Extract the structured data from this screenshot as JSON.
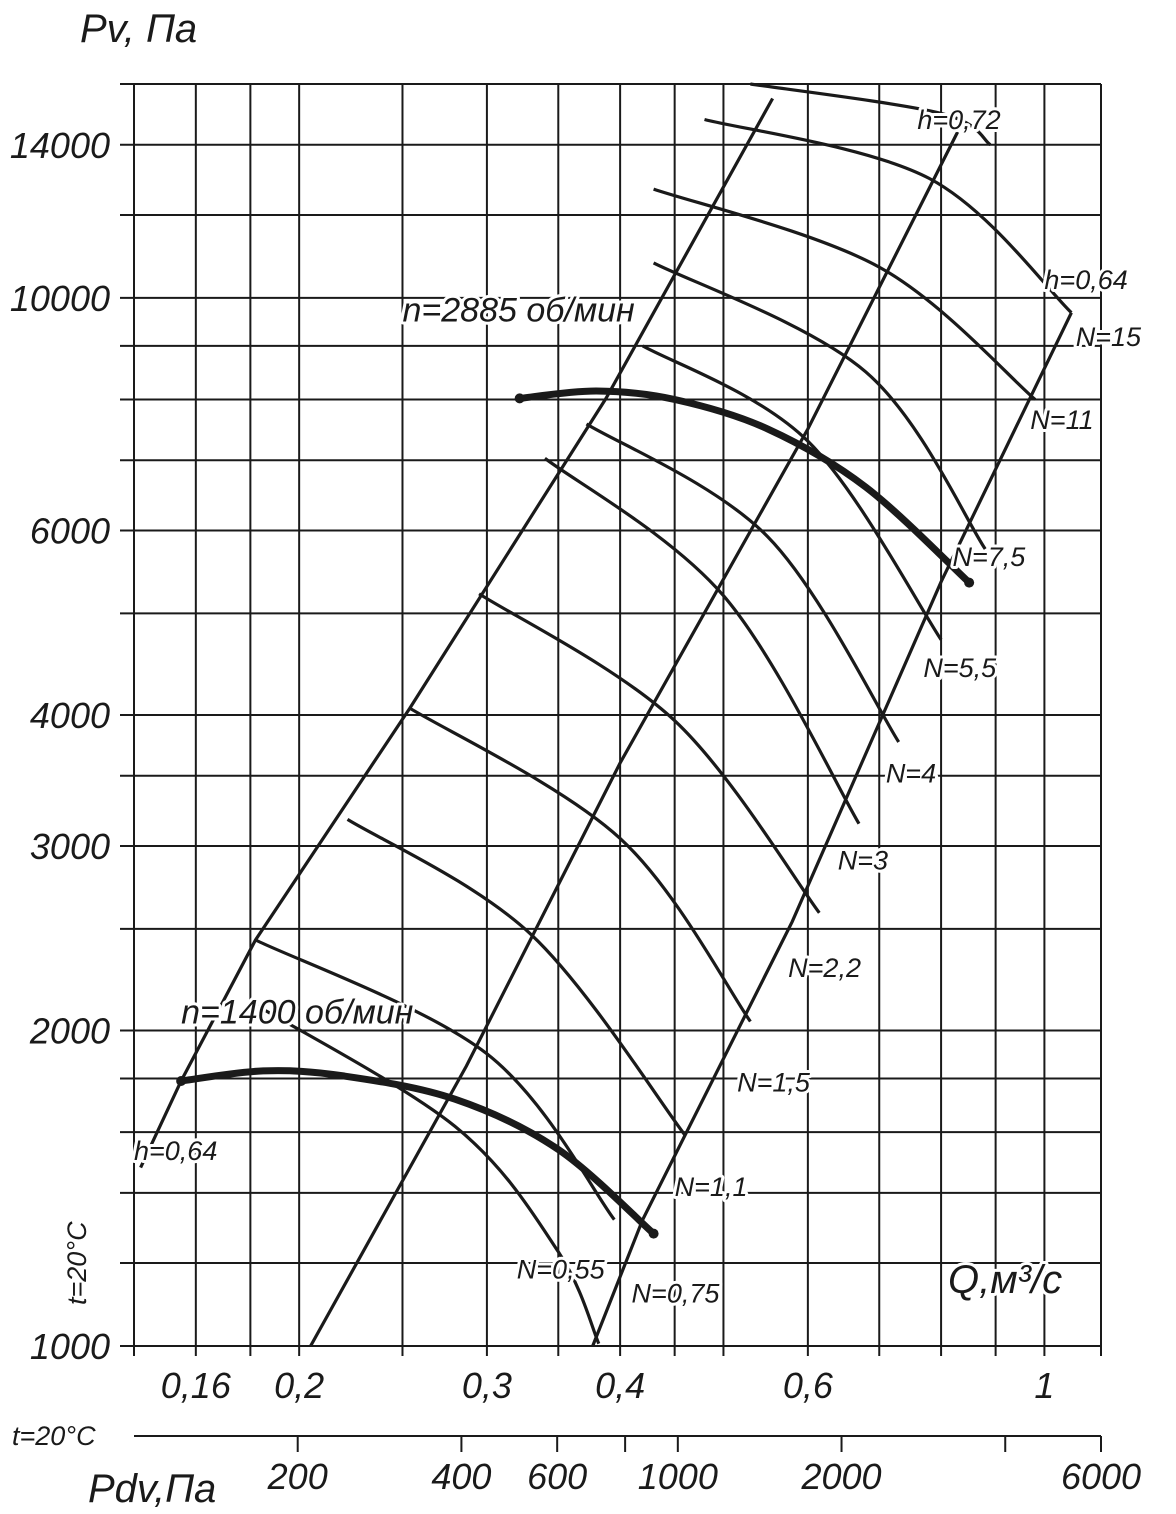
{
  "chart_data": {
    "type": "line",
    "ylabel": "Pv, Па",
    "xlabel": "Q,м³/с",
    "pdv_label": "Pdv,Па",
    "temp_label_y": "t=20°C",
    "temp_label_pdv": "t=20°C",
    "y_scale": "log",
    "x_scale": "log",
    "ylim": [
      1000,
      15000
    ],
    "xlim": [
      0.14,
      1.13
    ],
    "pdv_lim": [
      100,
      6000
    ],
    "grid": true,
    "y_ticks": [
      {
        "value": 1000,
        "label": "1000"
      },
      {
        "value": 2000,
        "label": "2000"
      },
      {
        "value": 3000,
        "label": "3000"
      },
      {
        "value": 4000,
        "label": "4000"
      },
      {
        "value": 6000,
        "label": "6000"
      },
      {
        "value": 10000,
        "label": "10000"
      },
      {
        "value": 14000,
        "label": "14000"
      }
    ],
    "y_grid": [
      1000,
      1200,
      1400,
      1600,
      1800,
      2000,
      2500,
      3000,
      3500,
      4000,
      5000,
      6000,
      7000,
      8000,
      9000,
      10000,
      12000,
      14000,
      16000
    ],
    "x_ticks": [
      {
        "value": 0.16,
        "label": "0,16"
      },
      {
        "value": 0.2,
        "label": "0,2"
      },
      {
        "value": 0.3,
        "label": "0,3"
      },
      {
        "value": 0.4,
        "label": "0,4"
      },
      {
        "value": 0.6,
        "label": "0,6"
      },
      {
        "value": 1.0,
        "label": "1"
      }
    ],
    "x_grid": [
      0.14,
      0.16,
      0.18,
      0.2,
      0.25,
      0.3,
      0.35,
      0.4,
      0.45,
      0.5,
      0.6,
      0.7,
      0.8,
      0.9,
      1.0,
      1.13
    ],
    "pdv_ticks": [
      {
        "value": 200,
        "label": "200"
      },
      {
        "value": 400,
        "label": "400"
      },
      {
        "value": 600,
        "label": "600"
      },
      {
        "value": 1000,
        "label": "1000"
      },
      {
        "value": 2000,
        "label": "2000"
      },
      {
        "value": 6000,
        "label": "6000"
      }
    ],
    "pdv_minor": [
      800,
      4000
    ],
    "efficiency_lines": [
      {
        "name": "h=0,64",
        "points": [
          [
            0.142,
            1480
          ],
          [
            0.155,
            1790
          ],
          [
            0.182,
            2440
          ],
          [
            0.254,
            4060
          ],
          [
            0.388,
            8020
          ],
          [
            0.556,
            15500
          ]
        ]
      },
      {
        "name": "h=0,72",
        "points": [
          [
            0.205,
            1000
          ],
          [
            0.287,
            1850
          ],
          [
            0.4,
            3600
          ],
          [
            0.6,
            7500
          ],
          [
            0.829,
            14400
          ]
        ]
      },
      {
        "name": "h=0,64",
        "points": [
          [
            0.377,
            1000
          ],
          [
            0.42,
            1320
          ],
          [
            0.58,
            2540
          ],
          [
            0.8,
            5360
          ],
          [
            1.06,
            9680
          ]
        ]
      }
    ],
    "power_curves": [
      {
        "name": "N=0,55",
        "label_at": [
          0.32,
          1160
        ],
        "points": [
          [
            0.18,
            2130
          ],
          [
            0.28,
            1620
          ],
          [
            0.35,
            1230
          ],
          [
            0.382,
            1005
          ]
        ]
      },
      {
        "name": "N=0,75",
        "label_at": [
          0.41,
          1100
        ],
        "points": [
          [
            0.182,
            2440
          ],
          [
            0.3,
            1900
          ],
          [
            0.395,
            1320
          ]
        ]
      },
      {
        "name": "N=1,1",
        "label_at": [
          0.45,
          1390
        ],
        "points": [
          [
            0.222,
            3180
          ],
          [
            0.33,
            2470
          ],
          [
            0.46,
            1590
          ]
        ]
      },
      {
        "name": "N=1,5",
        "label_at": [
          0.515,
          1750
        ],
        "points": [
          [
            0.254,
            4060
          ],
          [
            0.4,
            3050
          ],
          [
            0.53,
            2040
          ]
        ]
      },
      {
        "name": "N=2,2",
        "label_at": [
          0.575,
          2250
        ],
        "points": [
          [
            0.295,
            5220
          ],
          [
            0.45,
            3950
          ],
          [
            0.615,
            2590
          ]
        ]
      },
      {
        "name": "N=3",
        "label_at": [
          0.64,
          2850
        ],
        "points": [
          [
            0.34,
            7030
          ],
          [
            0.5,
            5200
          ],
          [
            0.67,
            3150
          ]
        ]
      },
      {
        "name": "N=4",
        "label_at": [
          0.71,
          3450
        ],
        "points": [
          [
            0.372,
            7580
          ],
          [
            0.55,
            5920
          ],
          [
            0.73,
            3770
          ]
        ]
      },
      {
        "name": "N=5,5",
        "label_at": [
          0.77,
          4350
        ],
        "points": [
          [
            0.42,
            9000
          ],
          [
            0.6,
            7300
          ],
          [
            0.8,
            4720
          ]
        ]
      },
      {
        "name": "N=7,5",
        "label_at": [
          0.82,
          5550
        ],
        "points": [
          [
            0.43,
            10800
          ],
          [
            0.68,
            8500
          ],
          [
            0.88,
            5760
          ]
        ]
      },
      {
        "name": "N=11",
        "label_at": [
          0.97,
          7500
        ],
        "points": [
          [
            0.43,
            12700
          ],
          [
            0.7,
            10700
          ],
          [
            0.98,
            8000
          ]
        ]
      },
      {
        "name": "N=15",
        "label_at": [
          1.07,
          9000
        ],
        "points": [
          [
            0.48,
            14800
          ],
          [
            0.78,
            13000
          ],
          [
            1.06,
            9680
          ]
        ]
      },
      {
        "name": "",
        "points": [
          [
            0.53,
            16000
          ],
          [
            0.8,
            15000
          ],
          [
            0.89,
            14000
          ]
        ]
      }
    ],
    "speed_curves": [
      {
        "name": "n=1400 об/мин",
        "label_at": [
          0.155,
          2030
        ],
        "points": [
          [
            0.155,
            1790
          ],
          [
            0.185,
            1830
          ],
          [
            0.22,
            1810
          ],
          [
            0.28,
            1720
          ],
          [
            0.35,
            1540
          ],
          [
            0.43,
            1280
          ]
        ]
      },
      {
        "name": "n=2885 об/мин",
        "label_at": [
          0.25,
          9500
        ],
        "points": [
          [
            0.322,
            8020
          ],
          [
            0.38,
            8150
          ],
          [
            0.45,
            8000
          ],
          [
            0.55,
            7500
          ],
          [
            0.68,
            6600
          ],
          [
            0.85,
            5350
          ]
        ]
      }
    ],
    "extra_labels": [
      {
        "text": "h=0,72",
        "at": [
          0.76,
          14500
        ]
      },
      {
        "text": "h=0,64",
        "at": [
          1.0,
          10200
        ]
      },
      {
        "text": "h=0,64",
        "at": [
          0.14,
          1505
        ]
      }
    ]
  }
}
